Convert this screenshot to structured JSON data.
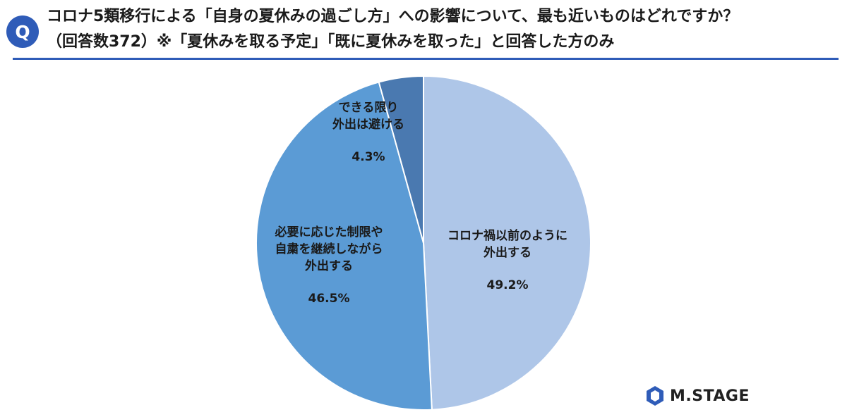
{
  "question": {
    "badge": "Q",
    "line1": "コロナ5類移行による「自身の夏休みの過ごし方」への影響について、最も近いものはどれですか？",
    "line2": "（回答数372）※「夏休みを取る予定」「既に夏休みを取った」と回答した方のみ"
  },
  "chart_data": {
    "type": "pie",
    "title": "",
    "start": "12 o'clock, clockwise",
    "slices": [
      {
        "label": "コロナ禍以前のように外出する",
        "label_lines": [
          "コロナ禍以前のように",
          "外出する"
        ],
        "value": 49.2,
        "value_label": "49.2%",
        "color": "#aec6e8"
      },
      {
        "label": "必要に応じた制限や自粛を継続しながら外出する",
        "label_lines": [
          "必要に応じた制限や",
          "自粛を継続しながら",
          "外出する"
        ],
        "value": 46.5,
        "value_label": "46.5%",
        "color": "#5b9bd5"
      },
      {
        "label": "できる限り外出は避ける",
        "label_lines": [
          "できる限り",
          "外出は避ける"
        ],
        "value": 4.3,
        "value_label": "4.3%",
        "color": "#4a79b0"
      }
    ]
  },
  "brand": {
    "name": "M.STAGE",
    "icon": "hexagon-logo-icon",
    "color": "#2f5cb8"
  }
}
